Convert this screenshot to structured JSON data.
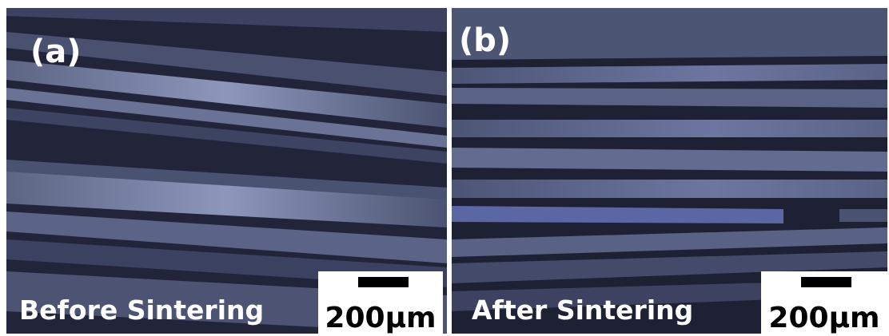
{
  "panels": [
    {
      "label": "(a)",
      "caption": "Before Sintering",
      "scale_bar": "200μm"
    },
    {
      "label": "(b)",
      "caption": "After Sintering",
      "scale_bar": "200μm"
    }
  ]
}
